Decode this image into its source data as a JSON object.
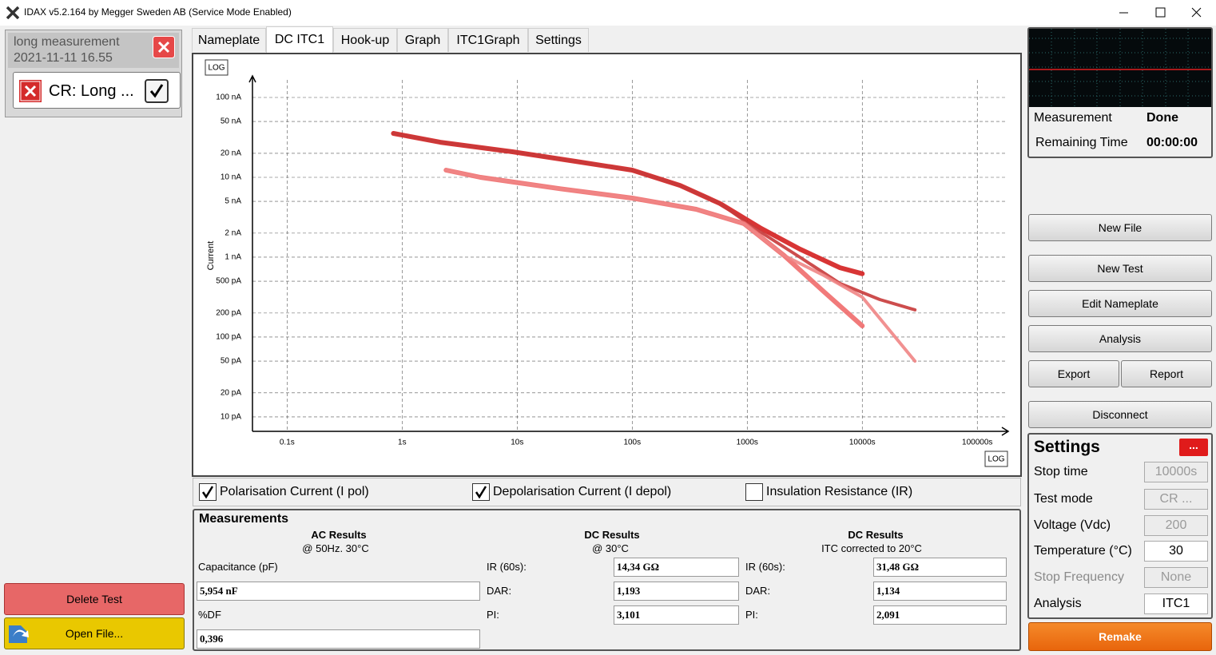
{
  "window": {
    "title": "IDAX v5.2.164 by Megger Sweden AB (Service Mode Enabled)"
  },
  "session": {
    "name": "long measurement",
    "date": "2021-11-11 16.55",
    "test": "CR: Long ..."
  },
  "left_buttons": [
    "Delete Test",
    "Open File..."
  ],
  "tabs": [
    "Nameplate",
    "DC ITC1",
    "Hook-up",
    "Graph",
    "ITC1Graph",
    "Settings"
  ],
  "active_tab": 1,
  "chart_data": {
    "type": "line",
    "ylabel": "Current",
    "scale_label": "LOG",
    "xscale": "log",
    "yscale": "log",
    "grid": true,
    "xlim": [
      0.05,
      180000
    ],
    "ylim": [
      6.6e-12,
      1.66e-07
    ],
    "xticks": [
      {
        "value": 0.1,
        "label": "0.1s"
      },
      {
        "value": 1,
        "label": "1s"
      },
      {
        "value": 10,
        "label": "10s"
      },
      {
        "value": 100,
        "label": "100s"
      },
      {
        "value": 1000,
        "label": "1000s"
      },
      {
        "value": 10000,
        "label": "10000s"
      },
      {
        "value": 100000,
        "label": "100000s"
      }
    ],
    "yticks": [
      {
        "value": 1e-07,
        "label": "100 nA"
      },
      {
        "value": 5e-08,
        "label": "50 nA"
      },
      {
        "value": 2e-08,
        "label": "20 nA"
      },
      {
        "value": 1e-08,
        "label": "10 nA"
      },
      {
        "value": 5e-09,
        "label": "5 nA"
      },
      {
        "value": 2e-09,
        "label": "2 nA"
      },
      {
        "value": 1e-09,
        "label": "1 nA"
      },
      {
        "value": 5e-10,
        "label": "500 pA"
      },
      {
        "value": 2e-10,
        "label": "200 pA"
      },
      {
        "value": 1e-10,
        "label": "100 pA"
      },
      {
        "value": 5e-11,
        "label": "50 pA"
      },
      {
        "value": 2e-11,
        "label": "20 pA"
      },
      {
        "value": 1e-11,
        "label": "10 pA"
      }
    ],
    "series": [
      {
        "color": "#d41f1f",
        "x": [
          0.84,
          2.15,
          9.1,
          32.6,
          100,
          261,
          580,
          1290,
          2870,
          6390,
          10000
        ],
        "values": [
          3.55e-08,
          2.75e-08,
          2.09e-08,
          1.58e-08,
          1.23e-08,
          7.9e-09,
          4.7e-09,
          2.34e-09,
          1.26e-09,
          7.4e-10,
          6.2e-10
        ]
      },
      {
        "color": "#c83a3a",
        "x": [
          0.84,
          2.15,
          9.1,
          32.6,
          100,
          261,
          580,
          1290,
          2870,
          6390,
          14200,
          28700
        ],
        "values": [
          3.55e-08,
          2.75e-08,
          2.09e-08,
          1.58e-08,
          1.23e-08,
          7.9e-09,
          4.7e-09,
          2.09e-09,
          1e-09,
          4.7e-10,
          2.95e-10,
          2.19e-10
        ]
      },
      {
        "color": "#ef6b6b",
        "x": [
          2.41,
          4.8,
          23.7,
          100,
          360,
          938,
          2090,
          4640,
          10000
        ],
        "values": [
          1.23e-08,
          1e-08,
          7.2e-09,
          5.5e-09,
          3.98e-09,
          2.63e-09,
          1.05e-09,
          3.7e-10,
          1.38e-10
        ]
      },
      {
        "color": "#f08585",
        "x": [
          2.41,
          4.8,
          23.7,
          100,
          360,
          938,
          2090,
          4640,
          10000,
          28700
        ],
        "values": [
          1.23e-08,
          1e-08,
          7.2e-09,
          5.5e-09,
          3.98e-09,
          2.63e-09,
          1.05e-09,
          5.9e-10,
          3.16e-10,
          5e-11
        ]
      }
    ]
  },
  "checkboxes": [
    {
      "label": "Polarisation Current (I pol)",
      "checked": true
    },
    {
      "label": "Depolarisation Current (I depol)",
      "checked": true
    },
    {
      "label": "Insulation Resistance (IR)",
      "checked": false
    }
  ],
  "measurements": {
    "title": "Measurements",
    "ac": {
      "title": "AC Results",
      "subtitle": "@ 50Hz. 30°C",
      "capacitance_label": "Capacitance (pF)",
      "capacitance": "5,954 nF",
      "df_label": "%DF",
      "df": "0,396"
    },
    "dc": {
      "title": "DC Results",
      "subtitle": "@ 30°C",
      "rows": [
        [
          "IR (60s):",
          "14,34 GΩ"
        ],
        [
          "DAR:",
          "1,193"
        ],
        [
          "PI:",
          "3,101"
        ]
      ]
    },
    "dc_corrected": {
      "title": "DC Results",
      "subtitle": "ITC corrected to 20°C",
      "rows": [
        [
          "IR (60s):",
          "31,48 GΩ"
        ],
        [
          "DAR:",
          "1,134"
        ],
        [
          "PI:",
          "2,091"
        ]
      ]
    }
  },
  "status": {
    "rows": [
      [
        "Measurement",
        "Done"
      ],
      [
        "Remaining Time",
        "00:00:00"
      ]
    ]
  },
  "buttons": [
    "New File",
    "New Test",
    "Edit Nameplate",
    "Analysis",
    "Export",
    "Report",
    "Disconnect"
  ],
  "settings": {
    "title": "Settings",
    "menu": "...",
    "rows": [
      {
        "label": "Stop time",
        "value": "10000s",
        "enabled": false
      },
      {
        "label": "Test mode",
        "value": "CR ...",
        "enabled": false
      },
      {
        "label": "Voltage (Vdc)",
        "value": "200",
        "enabled": false
      },
      {
        "label": "Temperature (°C)",
        "value": "30",
        "enabled": true
      },
      {
        "label": "Stop Frequency",
        "value": "None",
        "enabled": false
      },
      {
        "label": "Analysis",
        "value": "ITC1",
        "enabled": true
      }
    ]
  },
  "remake": "Remake"
}
